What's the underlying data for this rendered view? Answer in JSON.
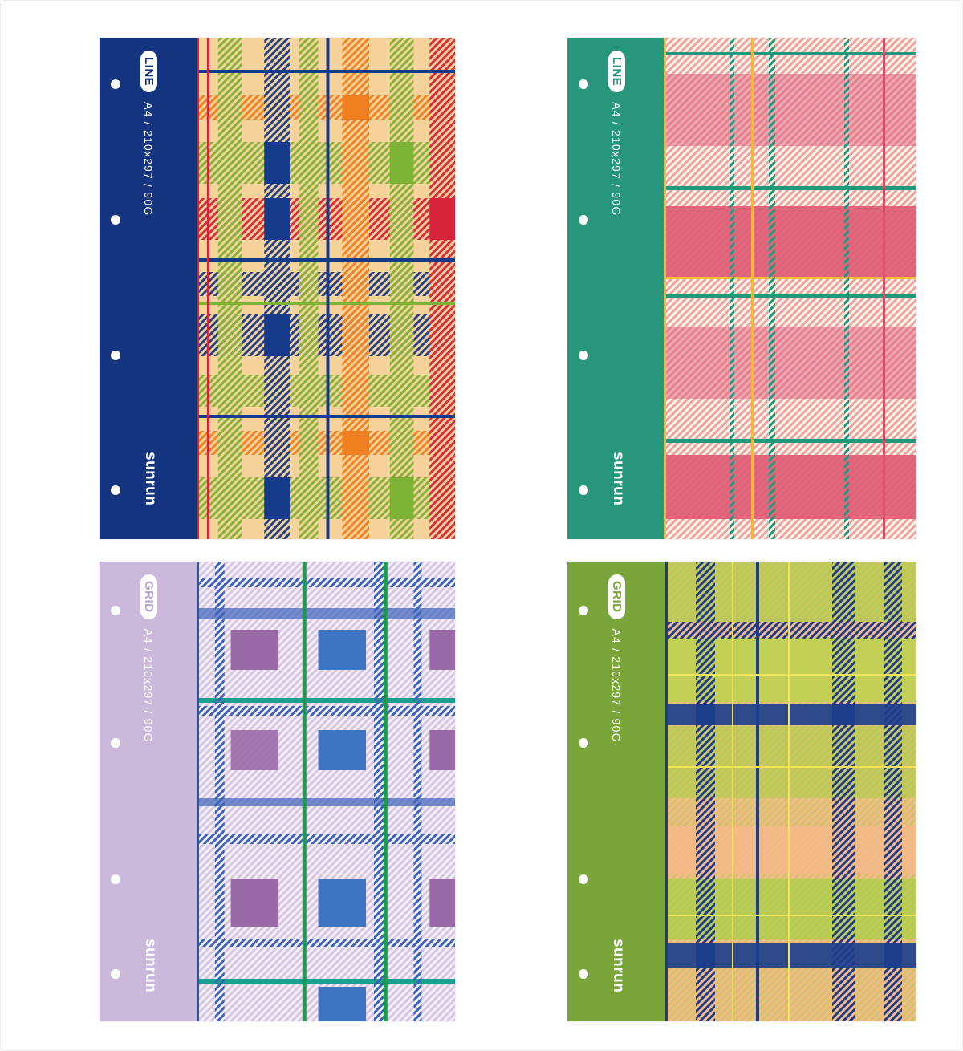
{
  "covers": [
    {
      "type_label": "LINE",
      "spec": "A4 / 210x297 / 90G",
      "brand": "sunrun",
      "colors": {
        "spine": "#153480",
        "accent": "#d8243a",
        "base": "#f7d39c",
        "band1": "#163a8a",
        "band2": "#7cb335",
        "band3": "#f07f1f",
        "line": "#d8243a"
      }
    },
    {
      "type_label": "LINE",
      "spec": "A4 / 210x297 / 90G",
      "brand": "sunrun",
      "colors": {
        "spine": "#27967a",
        "accent": "#f4b73b",
        "base": "#fdf7e6",
        "band1": "#d9506b",
        "band2": "#e58fa0",
        "band3": "#d9506b",
        "line": "#1f9a79"
      }
    },
    {
      "type_label": "GRID",
      "spec": "A4 / 210x297 / 90G",
      "brand": "sunrun",
      "colors": {
        "spine": "#cbb9dc",
        "accent": "#2857a8",
        "base": "#f4f0fa",
        "band1": "#9a6aa8",
        "band2": "#3d75c2",
        "band3": "#9a6aa8",
        "line": "#1a9a4a"
      }
    },
    {
      "type_label": "GRID",
      "spec": "A4 / 210x297 / 90G",
      "brand": "sunrun",
      "colors": {
        "spine": "#79a53a",
        "accent": "#1b3d8c",
        "base": "#f6b98a",
        "band1": "#1b3d8c",
        "band2": "#a6d144",
        "band3": "#1b3d8c",
        "line": "#f3e35a"
      }
    }
  ]
}
